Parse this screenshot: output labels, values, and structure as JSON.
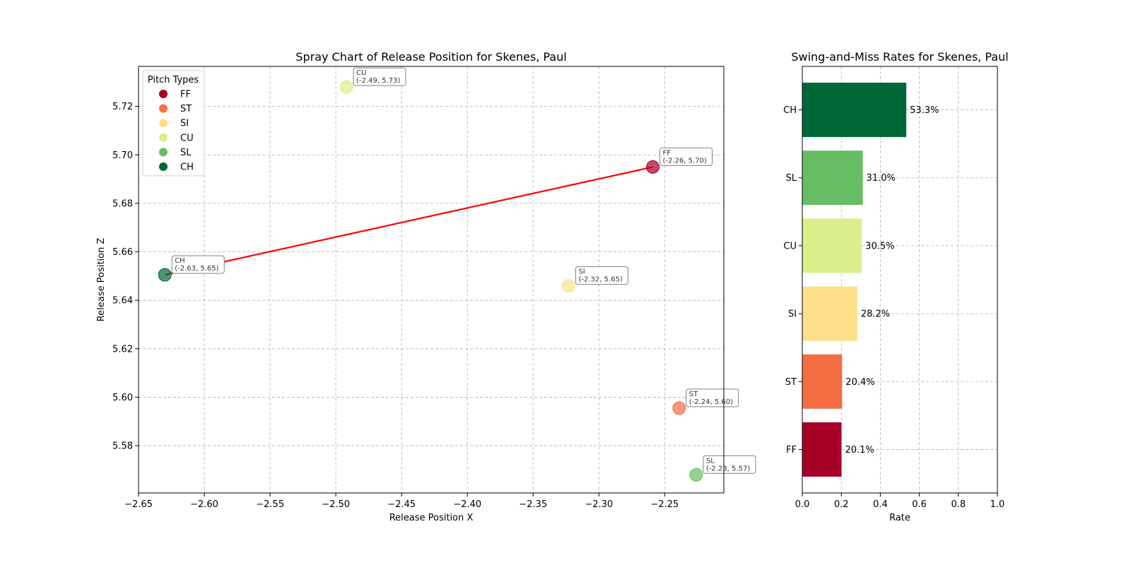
{
  "chart_data": [
    {
      "type": "scatter",
      "title": "Spray Chart of Release Position for Skenes, Paul",
      "xlabel": "Release Position X",
      "ylabel": "Release Position Z",
      "xlim": [
        -2.65,
        -2.205
      ],
      "ylim": [
        5.5605,
        5.7365
      ],
      "x_ticks": [
        {
          "value": -2.65,
          "label": "−2.65"
        },
        {
          "value": -2.6,
          "label": "−2.60"
        },
        {
          "value": -2.55,
          "label": "−2.55"
        },
        {
          "value": -2.5,
          "label": "−2.50"
        },
        {
          "value": -2.45,
          "label": "−2.45"
        },
        {
          "value": -2.4,
          "label": "−2.40"
        },
        {
          "value": -2.35,
          "label": "−2.35"
        },
        {
          "value": -2.3,
          "label": "−2.30"
        },
        {
          "value": -2.25,
          "label": "−2.25"
        }
      ],
      "y_ticks": [
        {
          "value": 5.58,
          "label": "5.58"
        },
        {
          "value": 5.6,
          "label": "5.60"
        },
        {
          "value": 5.62,
          "label": "5.62"
        },
        {
          "value": 5.64,
          "label": "5.64"
        },
        {
          "value": 5.66,
          "label": "5.66"
        },
        {
          "value": 5.68,
          "label": "5.68"
        },
        {
          "value": 5.7,
          "label": "5.70"
        },
        {
          "value": 5.72,
          "label": "5.72"
        }
      ],
      "grid": true,
      "legend": {
        "title": "Pitch Types",
        "placement": "top-left",
        "entries": [
          {
            "name": "FF",
            "color": "#a50026"
          },
          {
            "name": "ST",
            "color": "#f46d43"
          },
          {
            "name": "SI",
            "color": "#fee08b"
          },
          {
            "name": "CU",
            "color": "#d9ef8b"
          },
          {
            "name": "SL",
            "color": "#66bd63"
          },
          {
            "name": "CH",
            "color": "#006837"
          }
        ]
      },
      "points": [
        {
          "pitch": "FF",
          "x": -2.259,
          "y": 5.695,
          "label": "(-2.26, 5.70)",
          "color": "#a50026"
        },
        {
          "pitch": "ST",
          "x": -2.239,
          "y": 5.5955,
          "label": "(-2.24, 5.60)",
          "color": "#f46d43"
        },
        {
          "pitch": "SI",
          "x": -2.323,
          "y": 5.646,
          "label": "(-2.32, 5.65)",
          "color": "#fee08b"
        },
        {
          "pitch": "CU",
          "x": -2.492,
          "y": 5.728,
          "label": "(-2.49, 5.73)",
          "color": "#d9ef8b"
        },
        {
          "pitch": "SL",
          "x": -2.226,
          "y": 5.568,
          "label": "(-2.23, 5.57)",
          "color": "#66bd63"
        },
        {
          "pitch": "CH",
          "x": -2.63,
          "y": 5.6505,
          "label": "(-2.63, 5.65)",
          "color": "#006837"
        }
      ],
      "connector": {
        "from": "CH",
        "to": "FF",
        "color": "#ff0000"
      }
    },
    {
      "type": "bar",
      "orientation": "horizontal",
      "title": "Swing-and-Miss Rates for Skenes, Paul",
      "xlabel": "Rate",
      "ylabel": "",
      "xlim": [
        0,
        1
      ],
      "x_ticks": [
        {
          "value": 0,
          "label": "0.0"
        },
        {
          "value": 0.2,
          "label": "0.2"
        },
        {
          "value": 0.4,
          "label": "0.4"
        },
        {
          "value": 0.6,
          "label": "0.6"
        },
        {
          "value": 0.8,
          "label": "0.8"
        },
        {
          "value": 1.0,
          "label": "1.0"
        }
      ],
      "grid": true,
      "categories": [
        "FF",
        "ST",
        "SI",
        "CU",
        "SL",
        "CH"
      ],
      "values": [
        0.201,
        0.204,
        0.282,
        0.305,
        0.31,
        0.533
      ],
      "value_labels": [
        "20.1%",
        "20.4%",
        "28.2%",
        "30.5%",
        "31.0%",
        "53.3%"
      ],
      "colors": [
        "#a50026",
        "#f46d43",
        "#fee08b",
        "#d9ef8b",
        "#66bd63",
        "#006837"
      ]
    }
  ]
}
